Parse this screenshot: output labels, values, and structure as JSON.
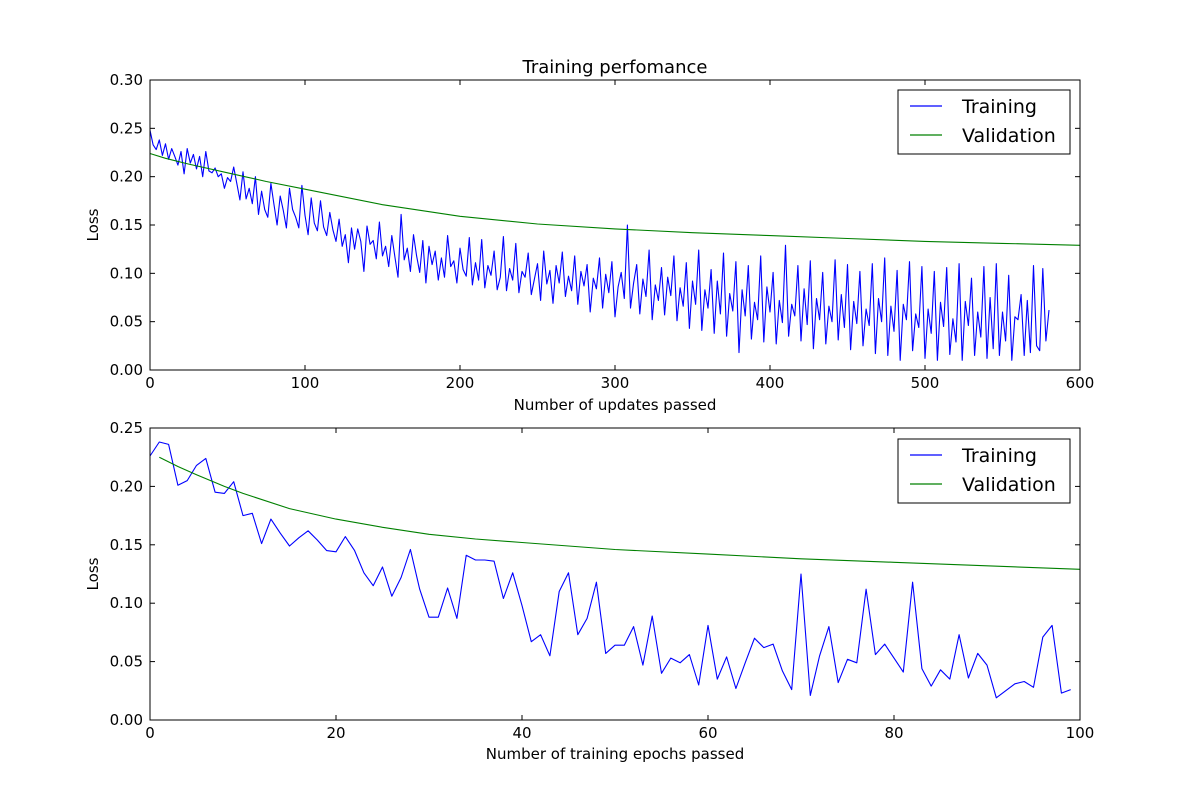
{
  "figure": {
    "title": "Training perfomance"
  },
  "chart_data": [
    {
      "type": "line",
      "title": "Training perfomance",
      "xlabel": "Number of updates passed",
      "ylabel": "Loss",
      "xlim": [
        0,
        600
      ],
      "ylim": [
        0.0,
        0.3
      ],
      "xticks": [
        "0",
        "100",
        "200",
        "300",
        "400",
        "500",
        "600"
      ],
      "yticks": [
        "0.00",
        "0.05",
        "0.10",
        "0.15",
        "0.20",
        "0.25",
        "0.30"
      ],
      "grid": false,
      "legend_position": "top-right",
      "series": [
        {
          "name": "Training",
          "color": "#0000ff",
          "x_start": 0,
          "x_step": 2,
          "values": [
            0.248,
            0.233,
            0.228,
            0.238,
            0.222,
            0.234,
            0.218,
            0.229,
            0.221,
            0.212,
            0.226,
            0.203,
            0.229,
            0.214,
            0.223,
            0.208,
            0.221,
            0.2,
            0.226,
            0.206,
            0.204,
            0.209,
            0.2,
            0.203,
            0.188,
            0.199,
            0.195,
            0.21,
            0.193,
            0.176,
            0.205,
            0.177,
            0.188,
            0.172,
            0.2,
            0.161,
            0.185,
            0.166,
            0.158,
            0.193,
            0.171,
            0.15,
            0.18,
            0.165,
            0.147,
            0.188,
            0.166,
            0.158,
            0.147,
            0.191,
            0.16,
            0.14,
            0.178,
            0.152,
            0.144,
            0.175,
            0.148,
            0.139,
            0.163,
            0.145,
            0.133,
            0.156,
            0.128,
            0.14,
            0.111,
            0.147,
            0.125,
            0.146,
            0.133,
            0.102,
            0.149,
            0.13,
            0.134,
            0.115,
            0.153,
            0.118,
            0.128,
            0.107,
            0.139,
            0.117,
            0.096,
            0.161,
            0.114,
            0.126,
            0.102,
            0.14,
            0.118,
            0.101,
            0.134,
            0.09,
            0.128,
            0.109,
            0.123,
            0.093,
            0.116,
            0.096,
            0.139,
            0.107,
            0.113,
            0.09,
            0.126,
            0.104,
            0.097,
            0.137,
            0.088,
            0.111,
            0.093,
            0.135,
            0.085,
            0.108,
            0.098,
            0.123,
            0.083,
            0.096,
            0.138,
            0.082,
            0.105,
            0.093,
            0.131,
            0.08,
            0.102,
            0.096,
            0.121,
            0.078,
            0.094,
            0.11,
            0.072,
            0.123,
            0.089,
            0.103,
            0.069,
            0.108,
            0.09,
            0.122,
            0.076,
            0.097,
            0.082,
            0.118,
            0.068,
            0.102,
            0.087,
            0.109,
            0.06,
            0.095,
            0.084,
            0.116,
            0.064,
            0.099,
            0.08,
            0.112,
            0.055,
            0.086,
            0.101,
            0.074,
            0.15,
            0.064,
            0.09,
            0.109,
            0.058,
            0.094,
            0.076,
            0.124,
            0.052,
            0.088,
            0.072,
            0.106,
            0.057,
            0.096,
            0.077,
            0.118,
            0.051,
            0.085,
            0.066,
            0.111,
            0.043,
            0.092,
            0.068,
            0.124,
            0.041,
            0.083,
            0.064,
            0.104,
            0.038,
            0.092,
            0.058,
            0.121,
            0.035,
            0.079,
            0.061,
            0.112,
            0.018,
            0.083,
            0.056,
            0.108,
            0.032,
            0.07,
            0.052,
            0.118,
            0.029,
            0.086,
            0.06,
            0.101,
            0.027,
            0.072,
            0.049,
            0.129,
            0.035,
            0.068,
            0.056,
            0.108,
            0.03,
            0.084,
            0.047,
            0.113,
            0.022,
            0.074,
            0.052,
            0.101,
            0.027,
            0.066,
            0.05,
            0.114,
            0.031,
            0.078,
            0.044,
            0.109,
            0.021,
            0.071,
            0.048,
            0.102,
            0.025,
            0.063,
            0.046,
            0.11,
            0.017,
            0.074,
            0.05,
            0.116,
            0.015,
            0.066,
            0.04,
            0.103,
            0.01,
            0.068,
            0.052,
            0.112,
            0.02,
            0.058,
            0.044,
            0.107,
            0.012,
            0.063,
            0.038,
            0.102,
            0.01,
            0.07,
            0.045,
            0.106,
            0.016,
            0.053,
            0.029,
            0.11,
            0.01,
            0.071,
            0.046,
            0.095,
            0.015,
            0.06,
            0.034,
            0.107,
            0.012,
            0.075,
            0.022,
            0.11,
            0.015,
            0.06,
            0.03,
            0.098,
            0.01,
            0.055,
            0.052,
            0.078,
            0.015,
            0.072,
            0.018,
            0.108,
            0.025,
            0.02,
            0.105,
            0.03,
            0.062
          ]
        },
        {
          "name": "Validation",
          "color": "#008000",
          "x": [
            0,
            10,
            25,
            50,
            75,
            100,
            150,
            200,
            250,
            300,
            350,
            400,
            450,
            500,
            550,
            600
          ],
          "values": [
            0.224,
            0.219,
            0.213,
            0.204,
            0.195,
            0.187,
            0.171,
            0.159,
            0.151,
            0.146,
            0.142,
            0.139,
            0.136,
            0.133,
            0.131,
            0.129
          ]
        }
      ]
    },
    {
      "type": "line",
      "title": "",
      "xlabel": "Number of training epochs passed",
      "ylabel": "Loss",
      "xlim": [
        0,
        100
      ],
      "ylim": [
        0.0,
        0.25
      ],
      "xticks": [
        "0",
        "20",
        "40",
        "60",
        "80",
        "100"
      ],
      "yticks": [
        "0.00",
        "0.05",
        "0.10",
        "0.15",
        "0.20",
        "0.25"
      ],
      "grid": false,
      "legend_position": "top-right",
      "series": [
        {
          "name": "Training",
          "color": "#0000ff",
          "x_start": 0,
          "x_step": 1,
          "values": [
            0.226,
            0.238,
            0.236,
            0.201,
            0.205,
            0.218,
            0.224,
            0.195,
            0.194,
            0.204,
            0.175,
            0.177,
            0.151,
            0.172,
            0.16,
            0.149,
            0.156,
            0.162,
            0.154,
            0.145,
            0.144,
            0.157,
            0.145,
            0.126,
            0.115,
            0.131,
            0.106,
            0.122,
            0.146,
            0.112,
            0.088,
            0.088,
            0.113,
            0.087,
            0.141,
            0.137,
            0.137,
            0.136,
            0.104,
            0.126,
            0.098,
            0.067,
            0.073,
            0.055,
            0.11,
            0.126,
            0.073,
            0.087,
            0.118,
            0.057,
            0.064,
            0.064,
            0.08,
            0.047,
            0.089,
            0.04,
            0.053,
            0.049,
            0.056,
            0.03,
            0.081,
            0.035,
            0.054,
            0.027,
            0.049,
            0.07,
            0.062,
            0.065,
            0.042,
            0.026,
            0.125,
            0.021,
            0.055,
            0.08,
            0.032,
            0.052,
            0.049,
            0.112,
            0.056,
            0.065,
            0.053,
            0.041,
            0.118,
            0.044,
            0.029,
            0.043,
            0.035,
            0.073,
            0.036,
            0.057,
            0.047,
            0.019,
            0.025,
            0.031,
            0.033,
            0.028,
            0.071,
            0.081,
            0.023,
            0.026
          ]
        },
        {
          "name": "Validation",
          "color": "#008000",
          "x": [
            1,
            3,
            5,
            8,
            10,
            15,
            20,
            25,
            30,
            35,
            40,
            50,
            60,
            70,
            80,
            90,
            100
          ],
          "values": [
            0.225,
            0.217,
            0.21,
            0.2,
            0.194,
            0.181,
            0.172,
            0.165,
            0.159,
            0.155,
            0.152,
            0.146,
            0.142,
            0.138,
            0.135,
            0.132,
            0.129
          ]
        }
      ]
    }
  ]
}
